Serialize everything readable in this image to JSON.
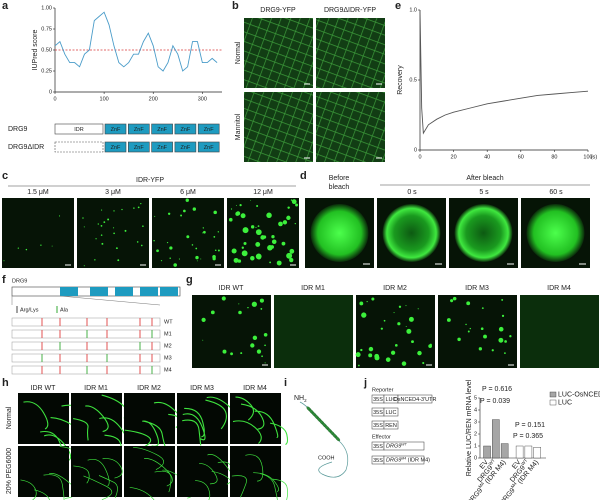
{
  "figure": {
    "panel_labels": [
      "a",
      "b",
      "c",
      "d",
      "e",
      "f",
      "g",
      "h",
      "i",
      "j"
    ],
    "a": {
      "constructs": [
        {
          "name": "DRG9",
          "domains": [
            "IDR",
            "ZnF",
            "ZnF",
            "ZnF",
            "ZnF",
            "ZnF"
          ]
        },
        {
          "name": "DRG9ΔIDR",
          "domains": [
            "ZnF",
            "ZnF",
            "ZnF",
            "ZnF",
            "ZnF"
          ]
        }
      ]
    },
    "b": {
      "columns": [
        "DRG9-YFP",
        "DRG9ΔIDR-YFP"
      ],
      "rows": [
        "Normal",
        "Mannitol"
      ]
    },
    "c": {
      "title": "IDR-YFP",
      "columns": [
        "1.5 μM",
        "3 μM",
        "6 μM",
        "12 μM"
      ]
    },
    "d": {
      "before": [
        "Before",
        "bleach"
      ],
      "after": "After bleach",
      "columns": [
        "0 s",
        "5 s",
        "60 s"
      ]
    },
    "f": {
      "protein": "DRG9",
      "legend": [
        "Arg/Lys",
        "Ala"
      ],
      "rows": [
        "WT",
        "M1",
        "M2",
        "M3",
        "M4"
      ]
    },
    "g": {
      "columns": [
        "IDR WT",
        "IDR M1",
        "IDR M2",
        "IDR M3",
        "IDR M4"
      ]
    },
    "h": {
      "columns": [
        "IDR WT",
        "IDR M1",
        "IDR M2",
        "IDR M3",
        "IDR M4"
      ],
      "rows": [
        "Normal",
        "20% PEG6000"
      ]
    },
    "i": {
      "n_term": "NH",
      "n_term_sub": "2",
      "c_term": "COOH"
    },
    "j": {
      "reporter_title": "Reporter",
      "reporters": [
        [
          "35S",
          "LUC",
          "OsNCED4-3'UTR"
        ],
        [
          "35S",
          "LUC"
        ],
        [
          "35S",
          "REN"
        ]
      ],
      "effector_title": "Effector",
      "effectors": [
        {
          "promoter": "35S",
          "gene": "DRG9",
          "sup": "WT"
        },
        {
          "promoter": "35S",
          "gene": "DRG9",
          "sup": "M4",
          "suffix": " (IDR M4)"
        }
      ]
    }
  },
  "chart_data": [
    {
      "type": "line",
      "y_label": "IUPred score",
      "color": "#4a9cc9",
      "x": [
        0,
        10,
        20,
        30,
        40,
        50,
        60,
        70,
        80,
        90,
        100,
        110,
        120,
        130,
        140,
        150,
        160,
        170,
        180,
        190,
        200,
        210,
        220,
        230,
        240,
        250,
        260,
        270,
        280,
        290,
        300,
        310,
        320,
        330
      ],
      "values": [
        0.55,
        0.6,
        0.45,
        0.35,
        0.35,
        0.3,
        0.45,
        0.5,
        0.85,
        0.9,
        0.95,
        0.8,
        0.55,
        0.35,
        0.3,
        0.35,
        0.45,
        0.45,
        0.6,
        0.7,
        0.55,
        0.3,
        0.25,
        0.35,
        0.55,
        0.45,
        0.25,
        0.3,
        0.6,
        0.6,
        0.35,
        0.35,
        0.4,
        0.35
      ],
      "reference_line": 0.5,
      "reference_color": "#d9383a",
      "xlim": [
        0,
        340
      ],
      "ylim": [
        0,
        1
      ],
      "xticks": [
        0,
        100,
        200,
        300
      ],
      "yticks": [
        0,
        0.25,
        {
          "value": 0.5,
          "label": "0.50"
        },
        0.75,
        {
          "value": 1,
          "label": "1.00"
        }
      ]
    },
    {
      "type": "line",
      "y_label": "Recovery",
      "x_unit": "(s)",
      "color": "#555555",
      "x": [
        0,
        1,
        2,
        5,
        10,
        15,
        20,
        30,
        40,
        50,
        60,
        70,
        80,
        90,
        100
      ],
      "values": [
        1.0,
        0.3,
        0.12,
        0.18,
        0.22,
        0.25,
        0.27,
        0.3,
        0.33,
        0.35,
        0.37,
        0.39,
        0.4,
        0.41,
        0.42
      ],
      "xlim": [
        0,
        100
      ],
      "ylim": [
        0,
        1
      ],
      "xticks": [
        0,
        20,
        40,
        60,
        80,
        100
      ],
      "yticks": [
        0,
        0.5,
        {
          "value": 1,
          "label": "1.0"
        }
      ]
    },
    {
      "type": "bar",
      "y_label": "Relative LUC/REN mRNA level",
      "categories": [
        "EV",
        {
          "base": "DRG9",
          "sup": "WT"
        },
        {
          "base": "DRG9",
          "sup": "M4",
          "suffix": " (IDR M4)"
        }
      ],
      "series": [
        {
          "name": "LUC-OsNCED4-3'UTR",
          "color": "#a6a6a6",
          "values": [
            1,
            3.2,
            1.2
          ]
        },
        {
          "name": "LUC",
          "color": "#ffffff",
          "values": [
            1,
            1,
            0.9
          ]
        }
      ],
      "annotations": [
        "P = 0.616",
        "P = 0.039",
        "P = 0.151",
        "P = 0.365"
      ],
      "ylim": [
        0,
        5
      ],
      "yticks": [
        0,
        1,
        2,
        3,
        4,
        5
      ]
    }
  ]
}
